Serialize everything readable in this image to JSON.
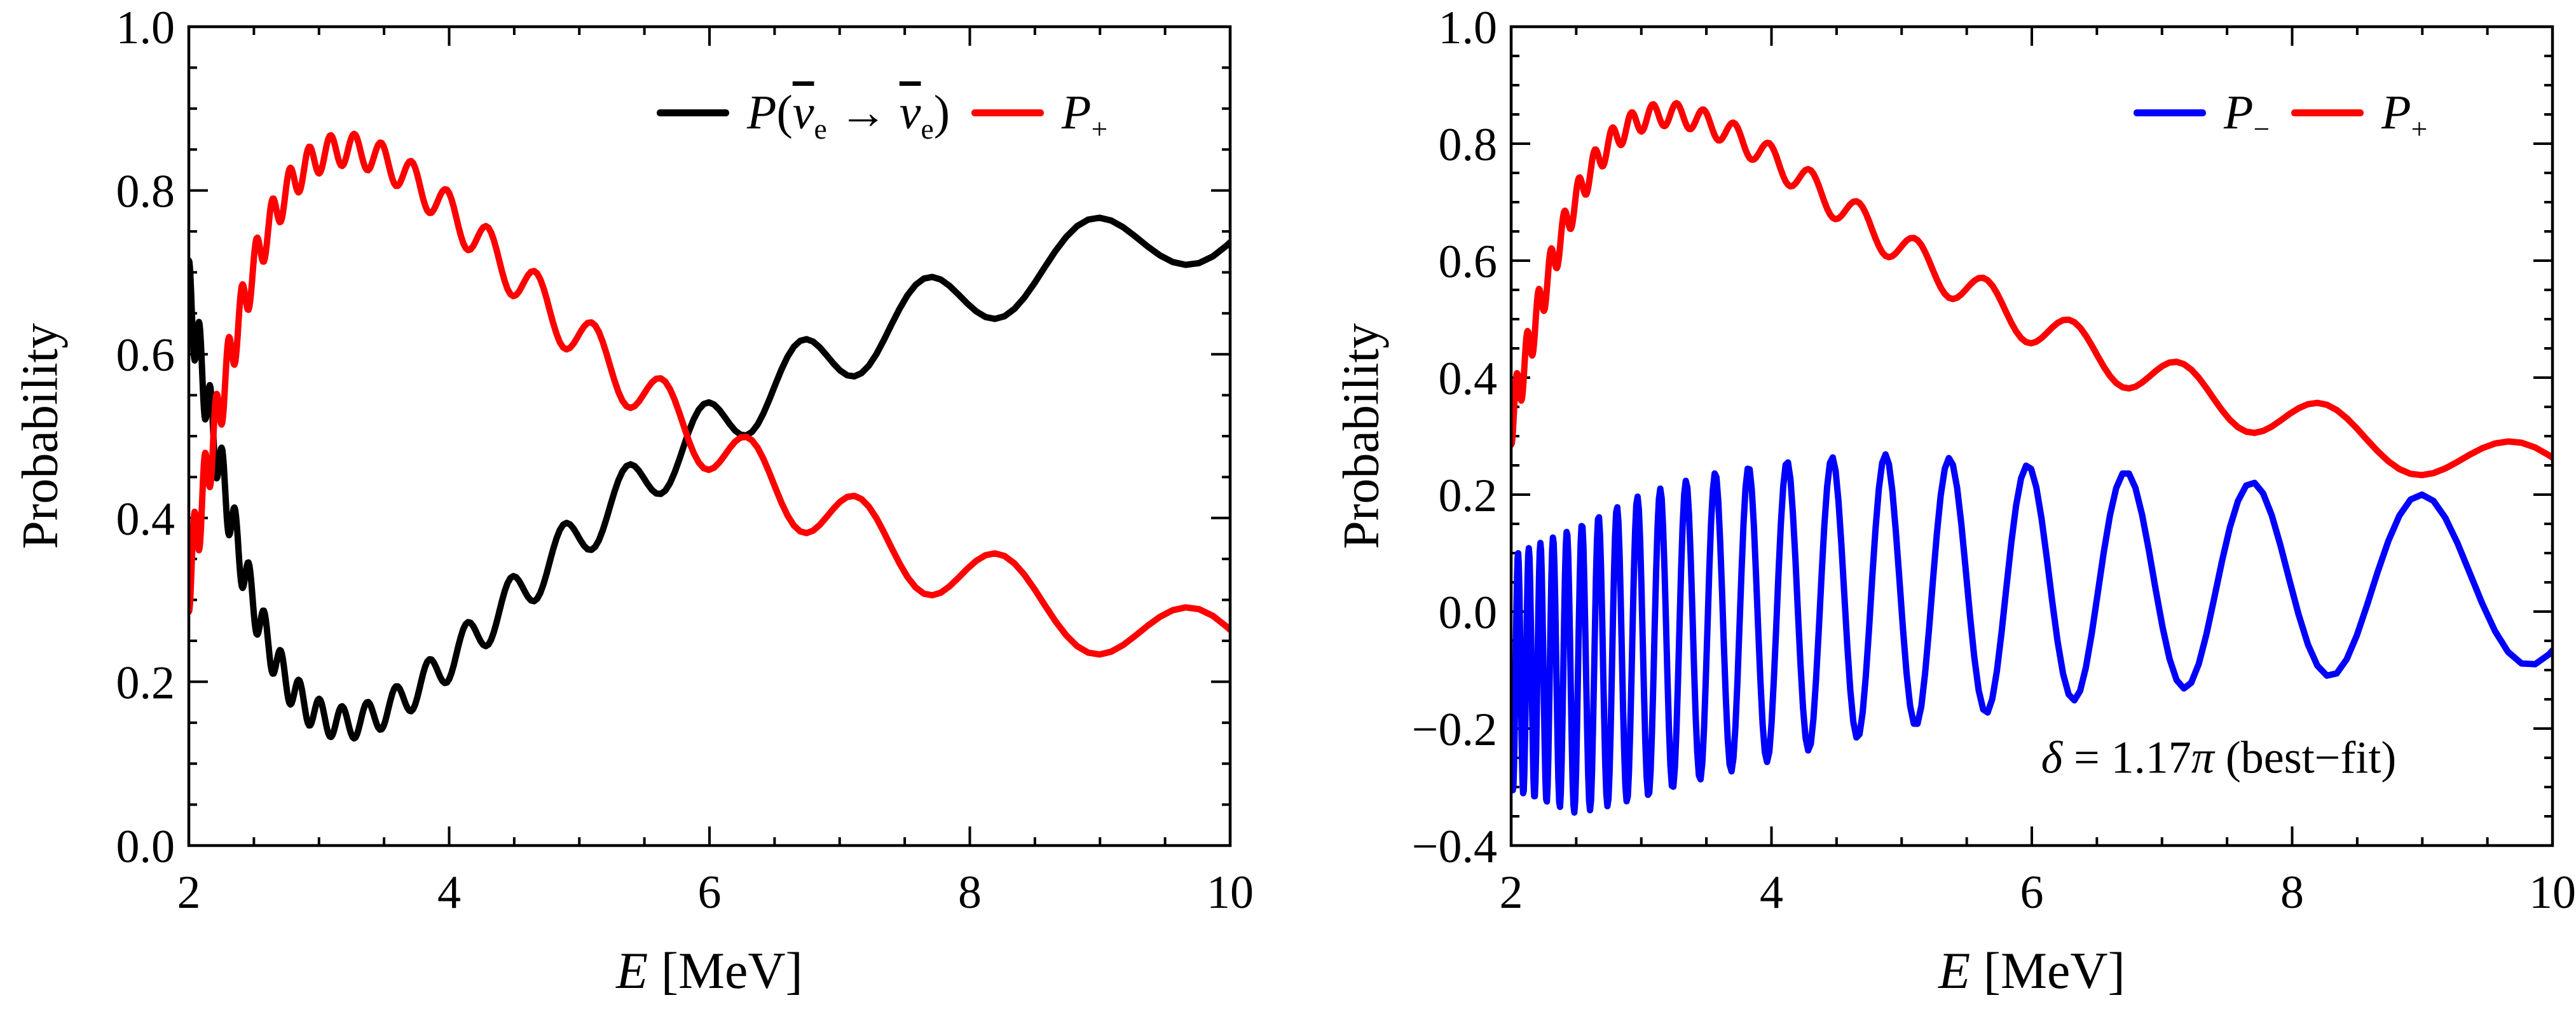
{
  "figure": {
    "background": "#ffffff",
    "description": "Two-panel neutrino oscillation probability figure",
    "colors": {
      "survival": "#000000",
      "p_plus": "#ff0000",
      "p_minus": "#0000ff"
    }
  },
  "chart_data": [
    {
      "id": "left-panel",
      "type": "line",
      "title": "",
      "grid": false,
      "legend_position": "top-right-inside",
      "x_axis": {
        "label": "E [MeV]",
        "label_parts": [
          {
            "t": "E",
            "i": true
          },
          {
            "t": " [MeV]"
          }
        ],
        "min": 2,
        "max": 10,
        "major_tick_step": 2,
        "minor_tick_step": 0.5,
        "major_tick_labels": [
          "2",
          "4",
          "6",
          "8",
          "10"
        ]
      },
      "y_axis": {
        "label": "Probability",
        "min": 0.0,
        "max": 1.0,
        "major_tick_step": 0.2,
        "minor_tick_step": 0.05,
        "major_tick_labels": [
          "0.0",
          "0.2",
          "0.4",
          "0.6",
          "0.8",
          "1.0"
        ]
      },
      "series": [
        {
          "name": "P(ν̄e → ν̄e)",
          "label_parts": [
            {
              "t": "P",
              "i": true
            },
            {
              "t": "("
            },
            {
              "t": "ν",
              "i": true,
              "bar": true
            },
            {
              "t": "e",
              "sub": true
            },
            {
              "t": " → "
            },
            {
              "t": "ν",
              "i": true,
              "bar": true
            },
            {
              "t": "e",
              "sub": true
            },
            {
              "t": ")"
            }
          ],
          "color": "#000000",
          "model": "pee",
          "anchor_points": {
            "E": [
              2.0,
              2.26,
              3.2,
              4.0,
              5.0,
              5.51,
              6.0,
              6.7,
              7.2,
              8.15,
              8.95,
              10.0
            ],
            "P": [
              0.7,
              0.5,
              0.15,
              0.22,
              0.38,
              0.5,
              0.54,
              0.62,
              0.57,
              0.65,
              0.77,
              0.74
            ]
          }
        },
        {
          "name": "P+",
          "label_parts": [
            {
              "t": "P",
              "i": true
            },
            {
              "t": "+",
              "sub": true
            }
          ],
          "color": "#ff0000",
          "model": "pplus",
          "anchor_points": {
            "E": [
              2.0,
              2.26,
              3.2,
              4.0,
              5.0,
              5.51,
              6.0,
              7.0,
              8.0,
              9.0,
              10.0
            ],
            "P": [
              0.3,
              0.5,
              0.85,
              0.78,
              0.62,
              0.5,
              0.46,
              0.41,
              0.34,
              0.24,
              0.26
            ]
          }
        }
      ],
      "params": {
        "a21": 5.03,
        "a31": 169.65,
        "a32": 164.62,
        "sin2_2theta12": 0.8,
        "fast_amp": 0.1,
        "w31": 0.7,
        "w32": 0.3
      }
    },
    {
      "id": "right-panel",
      "type": "line",
      "title": "",
      "grid": false,
      "legend_position": "top-right-inside",
      "annotation": {
        "text": "δ = 1.17π (best−fit)",
        "parts": [
          {
            "t": "δ",
            "i": true
          },
          {
            "t": " = 1.17"
          },
          {
            "t": "π",
            "i": true
          },
          {
            "t": " (best−fit)"
          }
        ]
      },
      "x_axis": {
        "label": "E [MeV]",
        "label_parts": [
          {
            "t": "E",
            "i": true
          },
          {
            "t": " [MeV]"
          }
        ],
        "min": 2,
        "max": 10,
        "major_tick_step": 2,
        "minor_tick_step": 0.5,
        "major_tick_labels": [
          "2",
          "4",
          "6",
          "8",
          "10"
        ]
      },
      "y_axis": {
        "label": "Probability",
        "min": -0.4,
        "max": 1.0,
        "major_tick_step": 0.2,
        "minor_tick_step": 0.05,
        "major_tick_labels": [
          "−0.4",
          "−0.2",
          "0.0",
          "0.2",
          "0.4",
          "0.6",
          "0.8",
          "1.0"
        ]
      },
      "series": [
        {
          "name": "P−",
          "label_parts": [
            {
              "t": "P",
              "i": true
            },
            {
              "t": "−",
              "sub": true
            }
          ],
          "color": "#0000ff",
          "model": "pminus",
          "anchor_points": {
            "E": [
              2.0,
              2.5,
              3.0,
              3.5,
              4.0,
              4.5,
              5.0,
              6.0,
              7.0,
              8.0,
              9.0,
              10.0
            ],
            "envelope_high": [
              0.095,
              0.145,
              0.2,
              0.235,
              0.255,
              0.265,
              0.27,
              0.25,
              0.235,
              0.215,
              0.2,
              0.19
            ],
            "envelope_low": [
              -0.305,
              -0.345,
              -0.32,
              -0.285,
              -0.255,
              -0.225,
              -0.2,
              -0.16,
              -0.135,
              -0.115,
              -0.1,
              -0.09
            ]
          }
        },
        {
          "name": "P+",
          "label_parts": [
            {
              "t": "P",
              "i": true
            },
            {
              "t": "+",
              "sub": true
            }
          ],
          "color": "#ff0000",
          "model": "pplus",
          "anchor_points": {
            "E": [
              2.0,
              2.26,
              3.2,
              4.0,
              5.0,
              5.51,
              6.0,
              7.0,
              8.0,
              9.0,
              10.0
            ],
            "P": [
              0.3,
              0.5,
              0.85,
              0.78,
              0.62,
              0.5,
              0.46,
              0.41,
              0.34,
              0.24,
              0.26
            ]
          }
        }
      ],
      "params": {
        "a21": 5.03,
        "a31": 169.65,
        "a32": 164.62,
        "sin2_2theta12": 0.8,
        "fast_amp": 0.1,
        "w31": 0.7,
        "w32": 0.3,
        "pminus": {
          "a_fast": 334.3,
          "phase": 2.11,
          "center_E": [
            2.0,
            2.5,
            3.0,
            3.5,
            4.0,
            4.5,
            5.0,
            6.0,
            7.0,
            8.0,
            9.0,
            10.0
          ],
          "center_v": [
            -0.105,
            -0.1,
            -0.06,
            -0.025,
            0.0,
            0.02,
            0.035,
            0.045,
            0.05,
            0.05,
            0.05,
            0.05
          ],
          "amp_E": [
            2.0,
            2.5,
            3.0,
            3.5,
            4.0,
            4.5,
            5.0,
            6.0,
            7.0,
            8.0,
            9.0,
            10.0
          ],
          "amp_v": [
            0.2,
            0.245,
            0.26,
            0.26,
            0.255,
            0.245,
            0.235,
            0.205,
            0.185,
            0.165,
            0.15,
            0.14
          ]
        }
      }
    }
  ]
}
